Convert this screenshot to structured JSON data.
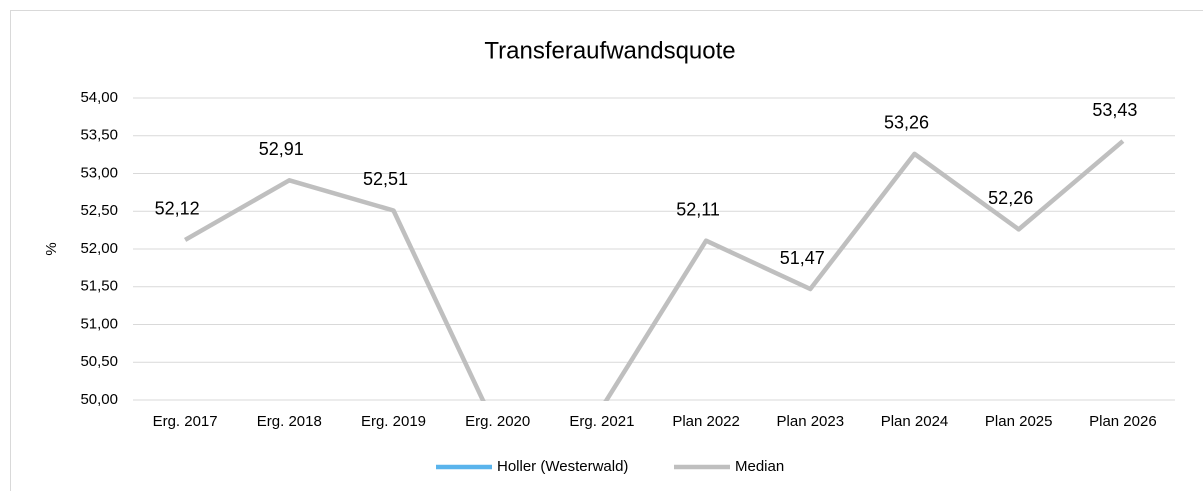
{
  "chart_data": {
    "type": "line",
    "title": "Transferaufwandsquote",
    "y_label": "%",
    "categories": [
      "Erg. 2017",
      "Erg. 2018",
      "Erg. 2019",
      "Erg. 2020",
      "Erg. 2021",
      "Plan 2022",
      "Plan 2023",
      "Plan 2024",
      "Plan 2025",
      "Plan 2026"
    ],
    "series": [
      {
        "name": "Holler (Westerwald)",
        "color": "#5ab4ec",
        "values": [
          null,
          null,
          null,
          null,
          null,
          null,
          null,
          null,
          null,
          null
        ]
      },
      {
        "name": "Median",
        "color": "#bfbfbf",
        "values": [
          52.12,
          52.91,
          52.51,
          49.58,
          49.9,
          52.11,
          51.47,
          53.26,
          52.26,
          53.43
        ],
        "value_labels": [
          "52,12",
          "52,91",
          "52,51",
          null,
          null,
          "52,11",
          "51,47",
          "53,26",
          "52,26",
          "53,43"
        ]
      }
    ],
    "ylim": [
      50,
      54
    ],
    "yticks": [
      {
        "value": 50,
        "label": "50,00"
      },
      {
        "value": 50.5,
        "label": "50,50"
      },
      {
        "value": 51,
        "label": "51,00"
      },
      {
        "value": 51.5,
        "label": "51,50"
      },
      {
        "value": 52,
        "label": "52,00"
      },
      {
        "value": 52.5,
        "label": "52,50"
      },
      {
        "value": 53,
        "label": "53,00"
      },
      {
        "value": 53.5,
        "label": "53,50"
      },
      {
        "value": 54,
        "label": "54,00"
      }
    ],
    "grid": true,
    "legend": "bottom"
  }
}
